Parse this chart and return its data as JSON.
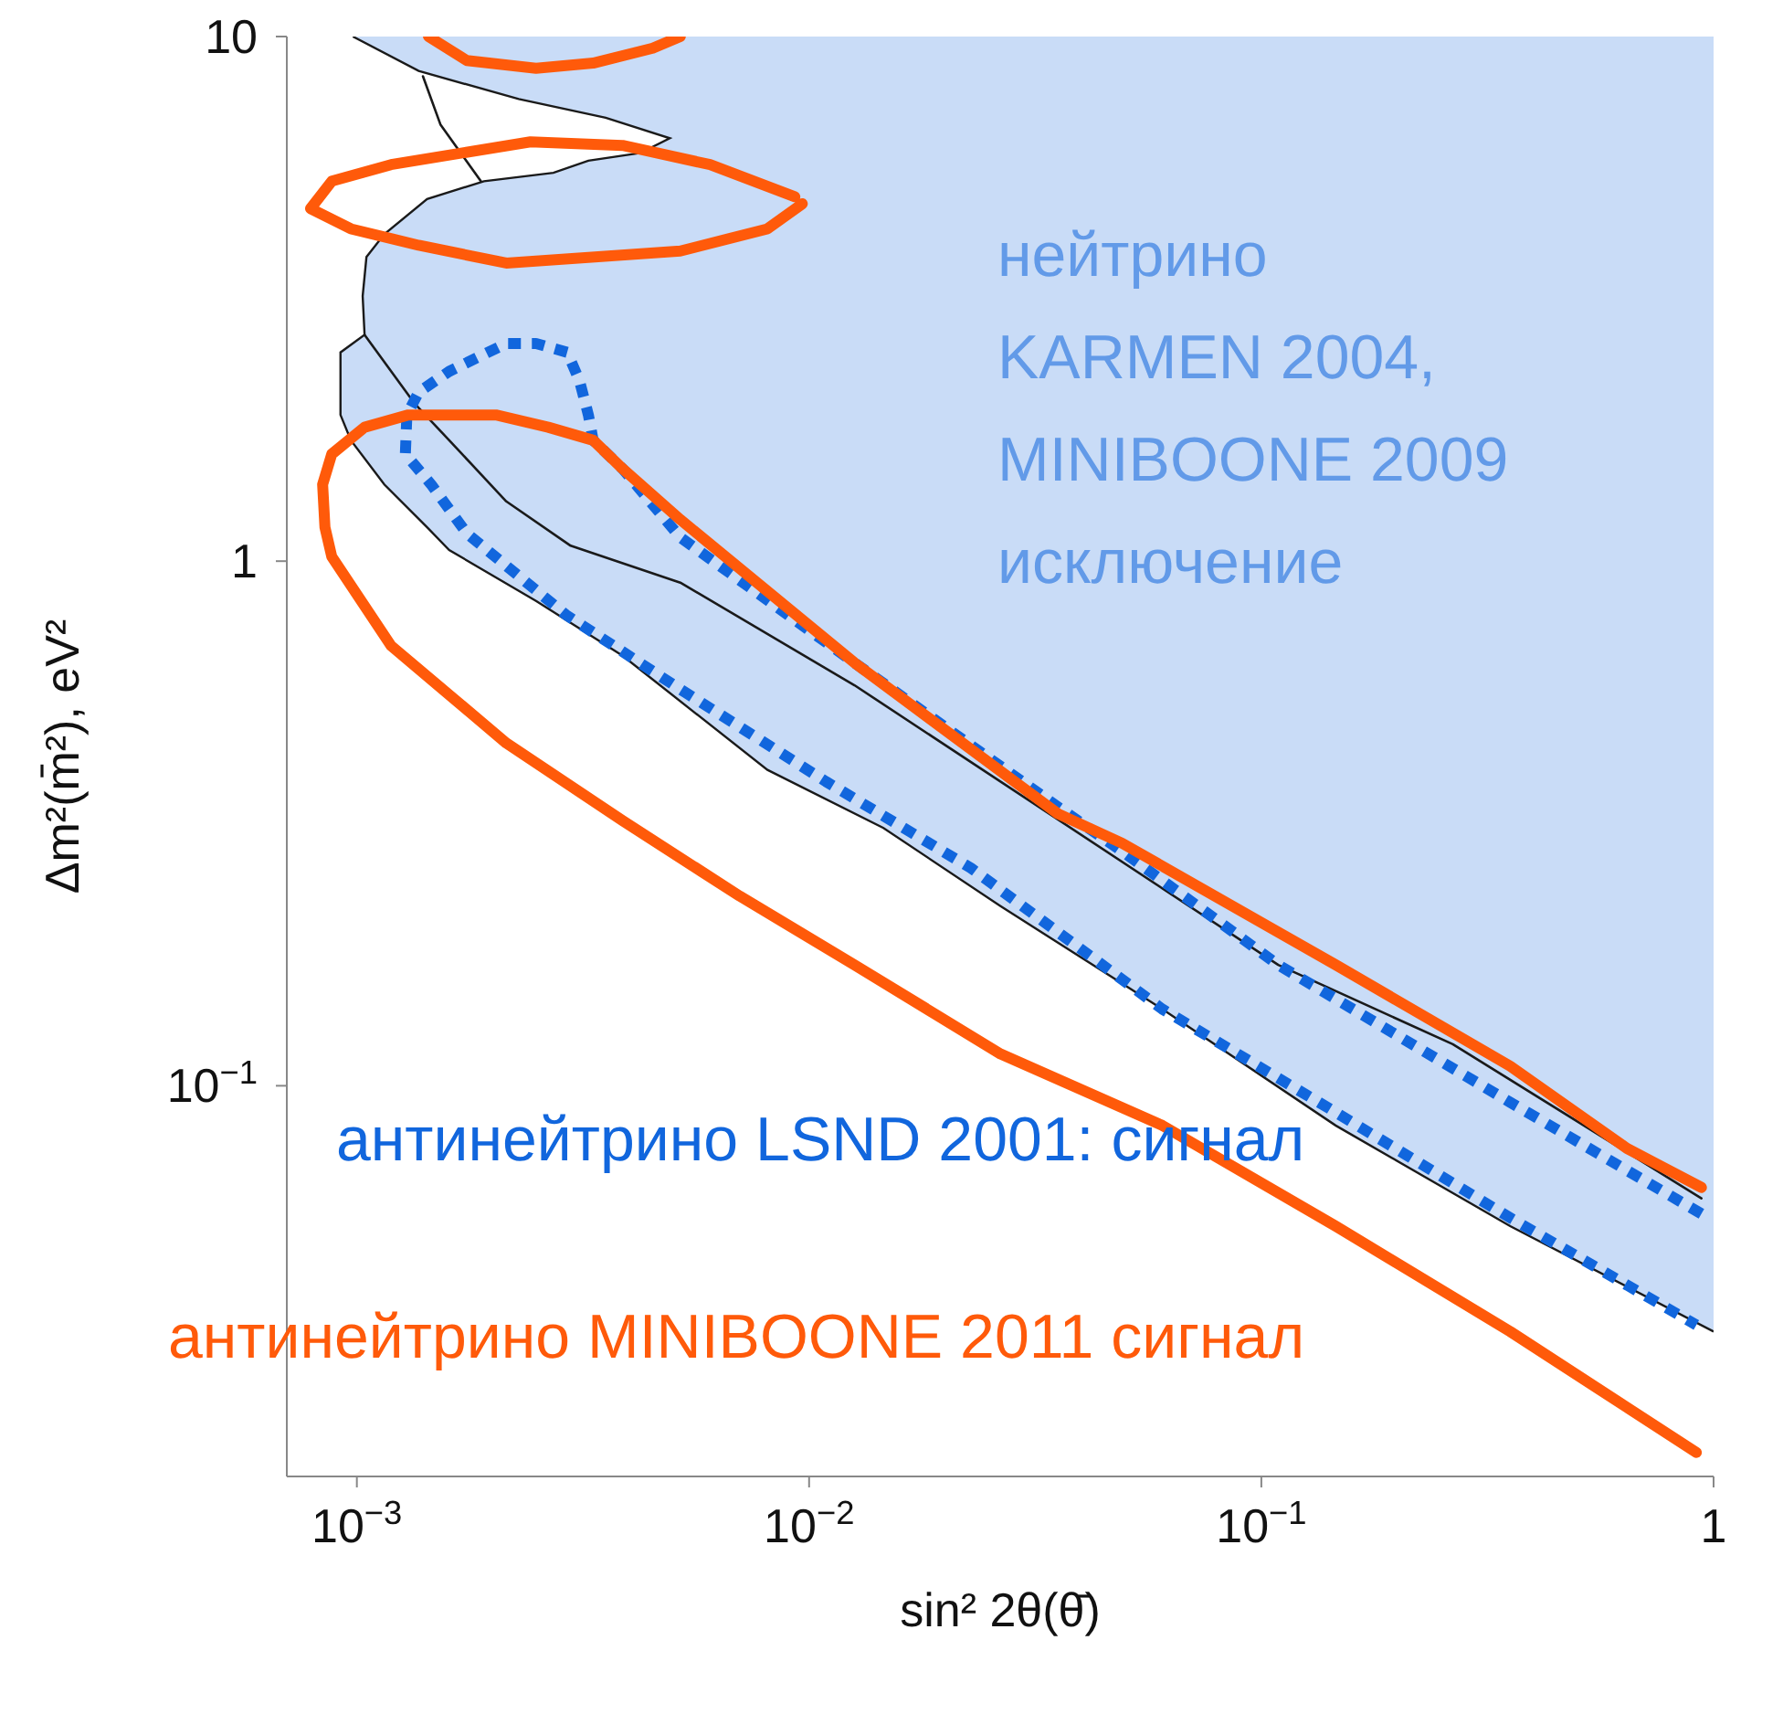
{
  "chart_data": {
    "type": "line",
    "xlabel": "sin² 2θ(θ̄)",
    "ylabel": "Δm²(m̄²), eV²",
    "log": "xy",
    "grid": false,
    "legend": false,
    "xlim": [
      0.0007,
      1
    ],
    "ylim": [
      0.018,
      10
    ],
    "xticks": [
      {
        "value": 0.001,
        "label": "10$^{−3}$"
      },
      {
        "value": 0.01,
        "label": "10$^{−2}$"
      },
      {
        "value": 0.1,
        "label": "10$^{−1}$"
      },
      1
    ],
    "yticks": [
      {
        "value": 0.1,
        "label": "10$^{−1}$"
      },
      1,
      10
    ],
    "series": [
      {
        "type": "area",
        "name": "нейтрино\nKARMEN 2004,\nMINIBOONE 2009\nисключение",
        "color": "#c9dcf7",
        "x": [
          0.00098,
          0.00137,
          0.00228,
          0.00355,
          0.00492,
          0.00424,
          0.00325,
          0.00272,
          0.00191,
          0.00143,
          0.00115,
          0.00105,
          0.00103,
          0.00104,
          0.00092,
          0.00092,
          0.00097,
          0.00115,
          0.00143,
          0.0016,
          0.00249,
          0.00387,
          0.00809,
          0.0146,
          0.0265,
          0.0604,
          0.146,
          0.355,
          1
        ],
        "values": [
          10,
          8.6,
          7.6,
          7.0,
          6.4,
          6.0,
          5.8,
          5.5,
          5.3,
          4.9,
          4.2,
          3.8,
          3.2,
          2.7,
          2.5,
          1.9,
          1.7,
          1.4,
          1.16,
          1.05,
          0.84,
          0.66,
          0.4,
          0.31,
          0.22,
          0.14,
          0.084,
          0.054,
          0.034
        ]
      },
      {
        "color": "#1a1a1a",
        "line_style": "solid",
        "x": [
          0.0014,
          0.00153,
          0.00188
        ],
        "values": [
          8.4,
          6.8,
          5.3
        ]
      },
      {
        "color": "#1a1a1a",
        "line_style": "solid",
        "x": [
          0.00104,
          0.00134,
          0.0016,
          0.00214,
          0.00297,
          0.00519,
          0.0126,
          0.109,
          0.265,
          0.94
        ],
        "values": [
          2.7,
          2.0,
          1.7,
          1.3,
          1.07,
          0.91,
          0.58,
          0.17,
          0.12,
          0.061
        ]
      },
      {
        "name": "антинейтрино LSND 2001: сигнал",
        "color": "#1166dd",
        "line_style": "dotted",
        "x": [
          0.94,
          0.355,
          0.109,
          0.0492,
          0.0355,
          0.0126,
          0.00519,
          0.00387,
          0.00333,
          0.00325,
          0.00311,
          0.00292,
          0.00249,
          0.00214,
          0.0016,
          0.00137,
          0.00129,
          0.00128,
          0.00146,
          0.00175,
          0.0029,
          0.00519,
          0.0109,
          0.0228,
          0.0604,
          0.146,
          0.355,
          0.916
        ],
        "values": [
          0.057,
          0.093,
          0.17,
          0.28,
          0.34,
          0.64,
          1.11,
          1.5,
          1.7,
          1.9,
          2.2,
          2.5,
          2.6,
          2.6,
          2.3,
          2.1,
          1.9,
          1.6,
          1.4,
          1.13,
          0.79,
          0.57,
          0.38,
          0.26,
          0.14,
          0.089,
          0.056,
          0.035
        ]
      },
      {
        "name": "антинейтрино MINIBOONE 2011 сигнал",
        "color": "#ff5a0a",
        "line_style": "solid",
        "x": [
          0.94,
          0.643,
          0.355,
          0.146,
          0.0492,
          0.0355,
          0.0126,
          0.00519,
          0.00387,
          0.00333,
          0.00265,
          0.00203,
          0.0013,
          0.00104,
          0.00088,
          0.00084,
          0.00085,
          0.00088,
          0.00119,
          0.00214,
          0.00387,
          0.00702,
          0.0126,
          0.0265,
          0.0604,
          0.146,
          0.355,
          0.916
        ],
        "values": [
          0.064,
          0.076,
          0.109,
          0.17,
          0.29,
          0.33,
          0.64,
          1.2,
          1.5,
          1.7,
          1.8,
          1.9,
          1.9,
          1.8,
          1.6,
          1.4,
          1.16,
          1.02,
          0.69,
          0.45,
          0.32,
          0.23,
          0.17,
          0.115,
          0.084,
          0.054,
          0.034,
          0.02
        ]
      },
      {
        "color": "#ff5a0a",
        "line_style": "solid",
        "x": [
          0.00144,
          0.00175,
          0.00249,
          0.00333,
          0.00451,
          0.00519
        ],
        "values": [
          10,
          9.0,
          8.7,
          8.9,
          9.5,
          10
        ]
      },
      {
        "color": "#ff5a0a",
        "line_style": "solid",
        "x": [
          0.00966,
          0.00809,
          0.00519,
          0.00214,
          0.00137,
          0.00097,
          0.00079,
          0.00088,
          0.00119,
          0.00242,
          0.00387,
          0.00604,
          0.0093
        ],
        "values": [
          4.8,
          4.3,
          3.9,
          3.7,
          4.0,
          4.3,
          4.7,
          5.3,
          5.7,
          6.3,
          6.2,
          5.7,
          4.95
        ]
      }
    ]
  }
}
